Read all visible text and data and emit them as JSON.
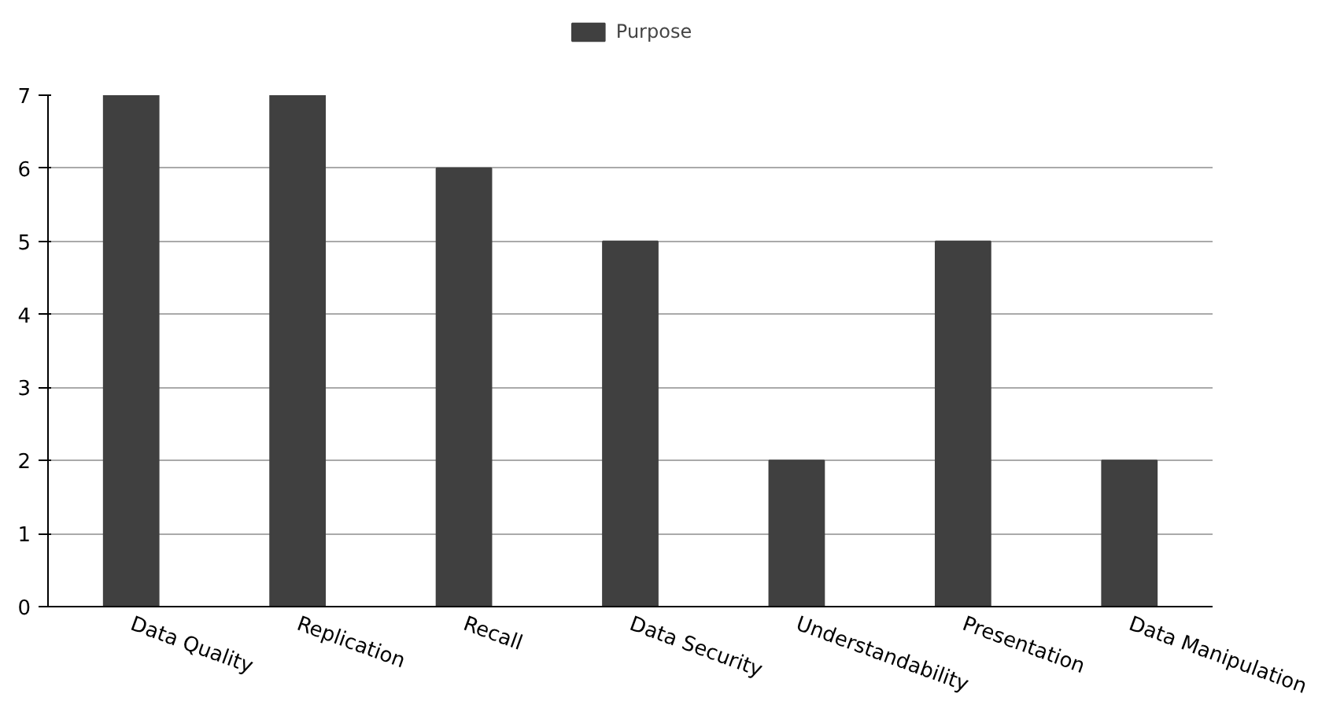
{
  "chart_data": {
    "type": "bar",
    "categories": [
      "Data Quality",
      "Replication",
      "Recall",
      "Data Security",
      "Understandability",
      "Presentation",
      "Data Manipulation"
    ],
    "series": [
      {
        "name": "Purpose",
        "color": "#404040",
        "values": [
          7,
          7,
          6,
          5,
          2,
          5,
          2
        ]
      }
    ],
    "ylim": [
      0,
      7
    ],
    "yticks": [
      0,
      1,
      2,
      3,
      4,
      5,
      6,
      7
    ],
    "grid": "y",
    "legend": "top"
  }
}
